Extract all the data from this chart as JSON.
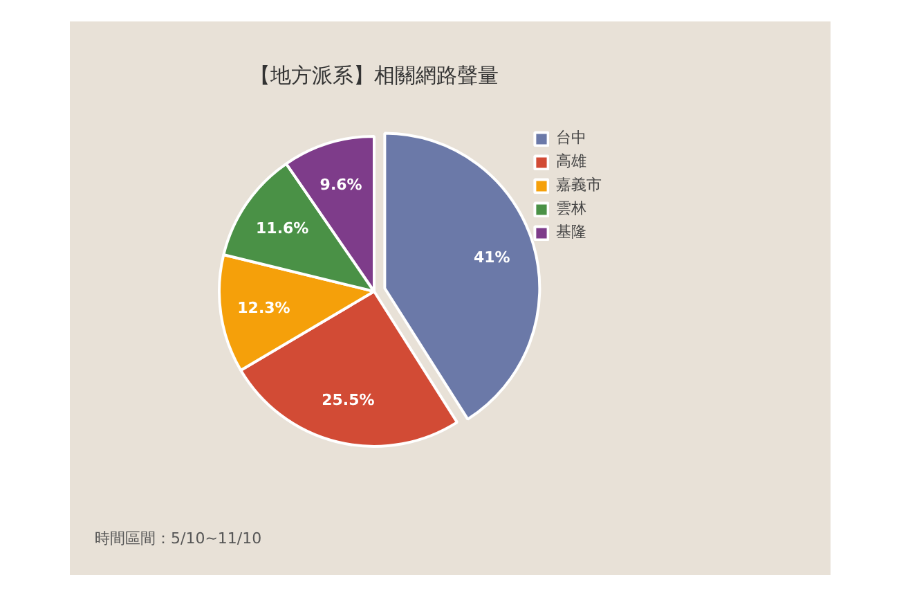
{
  "chart_data": {
    "type": "pie",
    "title": "【地方派系】相關網路聲量",
    "categories": [
      "台中",
      "高雄",
      "嘉義市",
      "雲林",
      "基隆"
    ],
    "values": [
      41,
      25.5,
      12.3,
      11.6,
      9.6
    ],
    "colors": [
      "#6b79a8",
      "#d24b35",
      "#f5a00a",
      "#4a9146",
      "#7e3c8a"
    ],
    "value_labels": [
      "41%",
      "25.5%",
      "12.3%",
      "11.6%",
      "9.6%"
    ],
    "legend": "top right",
    "annotations": [
      "時間區間：5/10~11/10"
    ]
  }
}
